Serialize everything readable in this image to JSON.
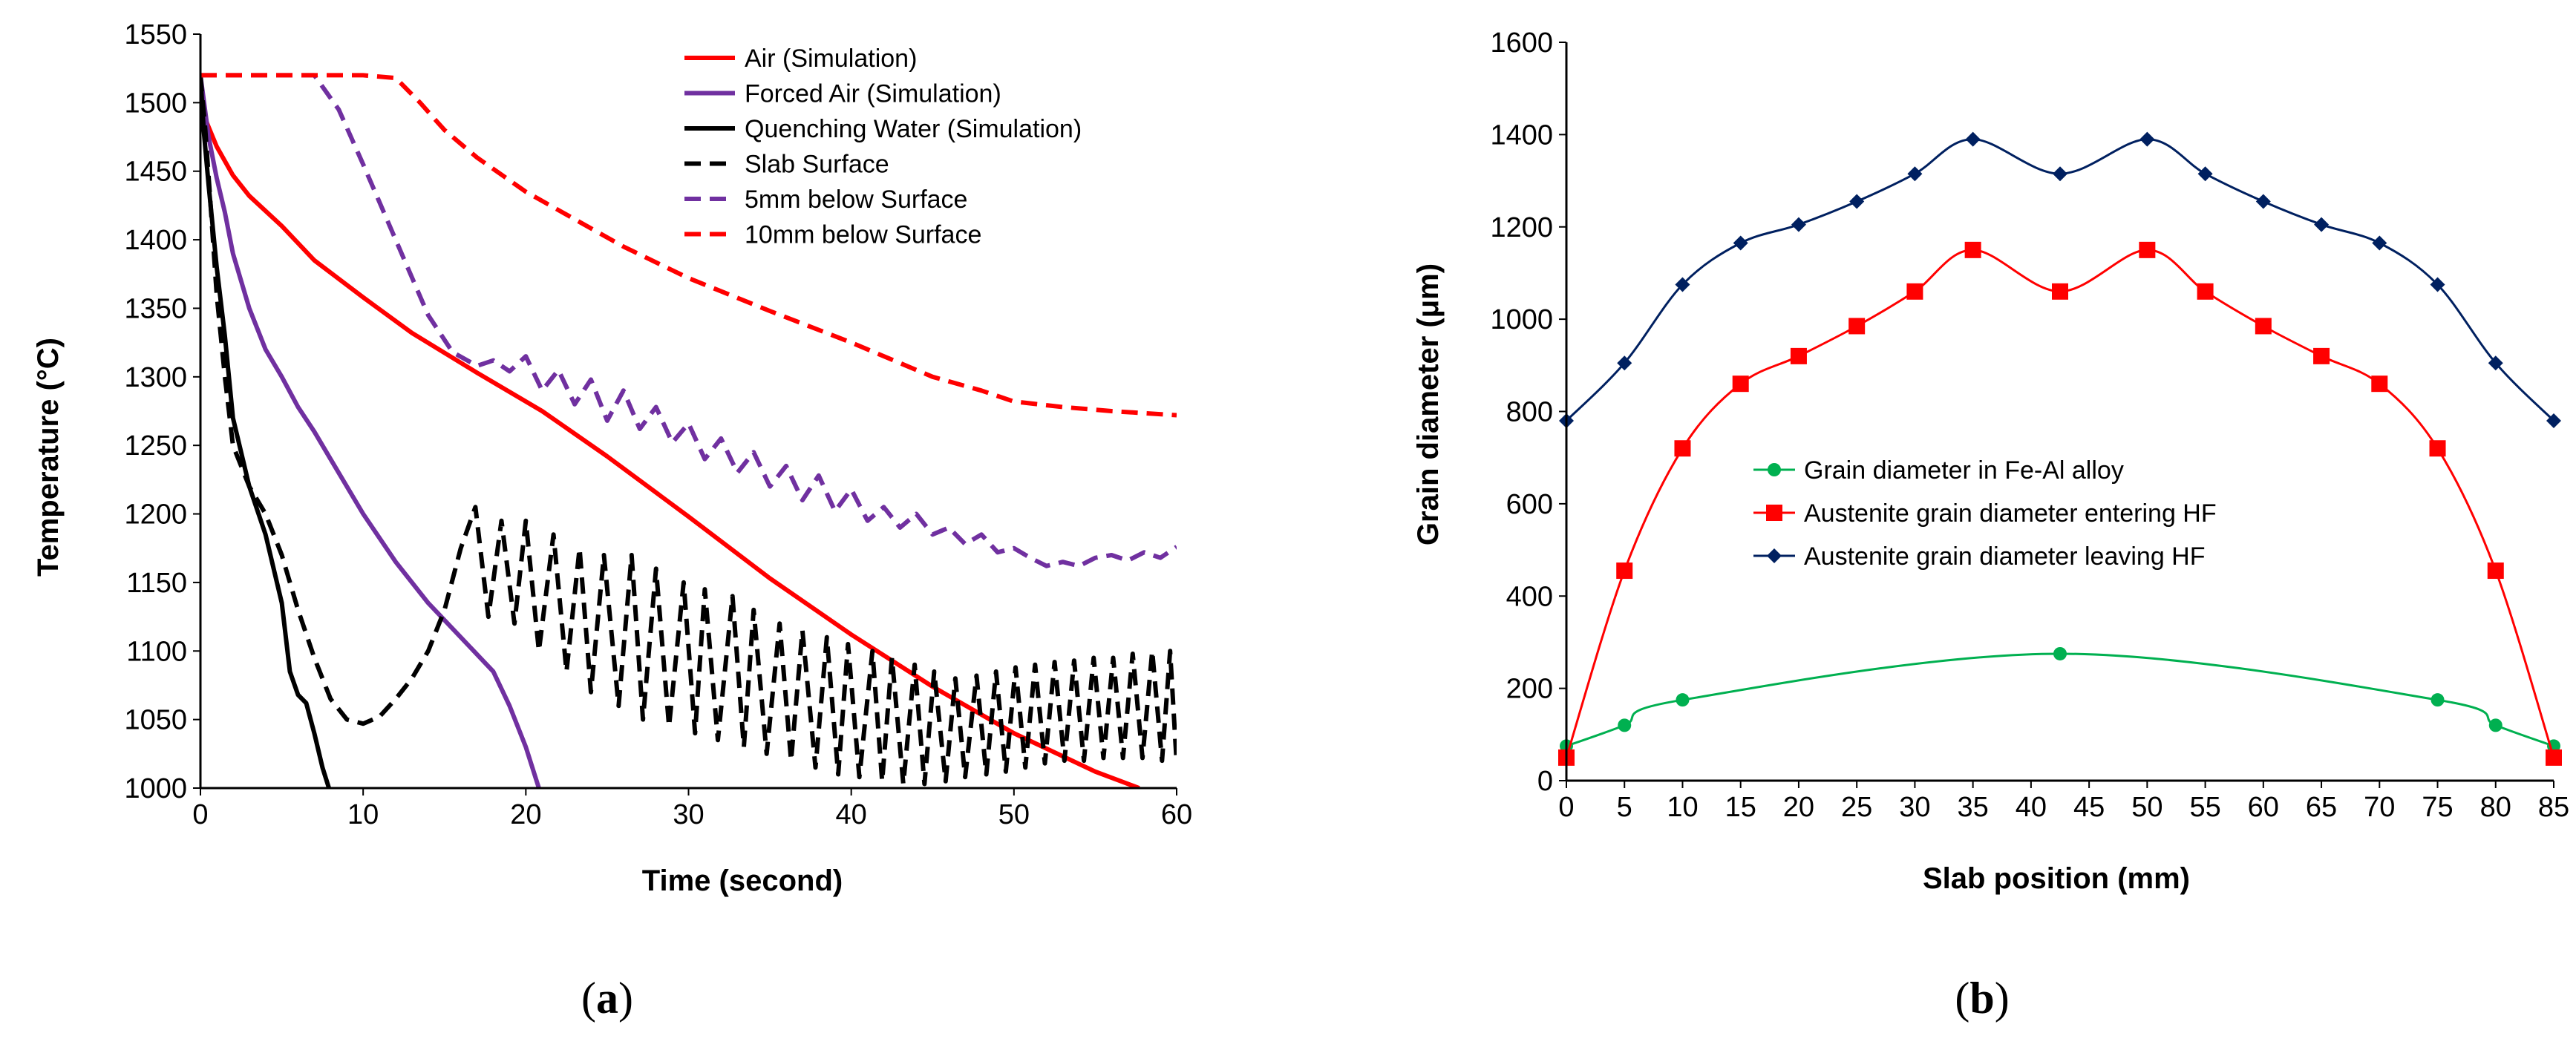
{
  "chart_data": [
    {
      "type": "line",
      "panel_label": "(a)",
      "panel_letter": "a",
      "xlabel": "Time (second)",
      "ylabel": "Temperature (°C)",
      "xlim": [
        0,
        60
      ],
      "ylim": [
        1000,
        1550
      ],
      "xticks": [
        0,
        10,
        20,
        30,
        40,
        50,
        60
      ],
      "yticks": [
        1000,
        1050,
        1100,
        1150,
        1200,
        1250,
        1300,
        1350,
        1400,
        1450,
        1500,
        1550
      ],
      "grid": false,
      "legend_position": "top-right",
      "series": [
        {
          "name": "Air (Simulation)",
          "color": "#ff0000",
          "dash": "solid",
          "x": [
            0,
            0.3,
            1,
            2,
            3,
            5,
            7,
            10,
            13,
            17,
            21,
            25,
            30,
            35,
            40,
            45,
            50,
            55,
            57.7
          ],
          "y": [
            1515,
            1488,
            1468,
            1447,
            1432,
            1410,
            1385,
            1358,
            1332,
            1303,
            1275,
            1242,
            1198,
            1153,
            1112,
            1074,
            1040,
            1012,
            1000
          ]
        },
        {
          "name": "Forced Air (Simulation)",
          "color": "#7030a0",
          "dash": "solid",
          "x": [
            0,
            0.5,
            1,
            1.5,
            2,
            3,
            4,
            5,
            6,
            7,
            8,
            10,
            12,
            14,
            16,
            18,
            19,
            20,
            20.8
          ],
          "y": [
            1520,
            1475,
            1445,
            1420,
            1390,
            1350,
            1320,
            1300,
            1278,
            1260,
            1240,
            1200,
            1165,
            1135,
            1110,
            1085,
            1060,
            1030,
            1000
          ]
        },
        {
          "name": "Quenching Water (Simulation)",
          "color": "#000000",
          "dash": "solid",
          "x": [
            0,
            0.2,
            0.5,
            1,
            1.5,
            2,
            3,
            4,
            5,
            5.5,
            6,
            6.5,
            7,
            7.5,
            7.9
          ],
          "y": [
            1520,
            1480,
            1440,
            1380,
            1330,
            1270,
            1220,
            1185,
            1135,
            1085,
            1068,
            1062,
            1040,
            1015,
            1000
          ]
        },
        {
          "name": "Slab Surface",
          "color": "#000000",
          "dash": "dashed",
          "x": [
            0,
            0.3,
            0.6,
            1,
            1.5,
            2,
            3,
            4,
            5,
            6,
            7,
            8,
            9,
            10,
            11,
            12,
            13,
            14,
            15,
            16,
            16.9,
            17.7,
            18.5,
            19.3,
            20.0,
            20.8,
            21.7,
            22.5,
            23.3,
            24.0,
            24.8,
            25.7,
            26.5,
            27.2,
            28.0,
            28.8,
            29.7,
            30.4,
            31.0,
            31.8,
            32.7,
            33.4,
            34.0,
            34.8,
            35.6,
            36.3,
            37.0,
            37.8,
            38.5,
            39.2,
            39.8,
            40.5,
            41.3,
            41.9,
            42.5,
            43.2,
            43.9,
            44.5,
            45.1,
            45.8,
            46.4,
            47.0,
            47.7,
            48.3,
            48.9,
            49.5,
            50.1,
            50.7,
            51.3,
            51.9,
            52.5,
            53.1,
            53.7,
            54.3,
            54.9,
            55.5,
            56.1,
            56.7,
            57.3,
            57.9,
            58.5,
            59.1,
            59.6,
            60
          ],
          "y": [
            1520,
            1480,
            1430,
            1360,
            1300,
            1250,
            1220,
            1200,
            1170,
            1130,
            1095,
            1065,
            1050,
            1047,
            1052,
            1065,
            1080,
            1100,
            1130,
            1175,
            1205,
            1125,
            1195,
            1120,
            1195,
            1100,
            1185,
            1085,
            1175,
            1070,
            1170,
            1060,
            1170,
            1050,
            1160,
            1045,
            1150,
            1040,
            1145,
            1035,
            1140,
            1030,
            1130,
            1025,
            1120,
            1020,
            1115,
            1015,
            1110,
            1010,
            1105,
            1008,
            1100,
            1005,
            1095,
            1003,
            1090,
            1003,
            1085,
            1005,
            1080,
            1008,
            1082,
            1010,
            1085,
            1012,
            1088,
            1015,
            1090,
            1018,
            1092,
            1020,
            1093,
            1020,
            1095,
            1022,
            1095,
            1022,
            1098,
            1022,
            1100,
            1020,
            1100,
            1018
          ]
        },
        {
          "name": "5mm below Surface",
          "color": "#7030a0",
          "dash": "dashed",
          "x": [
            0,
            4,
            7,
            8.5,
            10,
            12,
            14,
            15.5,
            17,
            18,
            19,
            20,
            21,
            22,
            23,
            24,
            25,
            26,
            27,
            28,
            29,
            30,
            31,
            32,
            33,
            34,
            35,
            36,
            37,
            38,
            39,
            40,
            41,
            42,
            43,
            44,
            45,
            46,
            47,
            48,
            49,
            50,
            51,
            52,
            53,
            54,
            55,
            56,
            57,
            58,
            59,
            60
          ],
          "y": [
            1520,
            1520,
            1520,
            1495,
            1455,
            1400,
            1345,
            1318,
            1308,
            1312,
            1304,
            1315,
            1290,
            1305,
            1280,
            1298,
            1268,
            1290,
            1262,
            1278,
            1252,
            1266,
            1240,
            1255,
            1230,
            1245,
            1220,
            1235,
            1210,
            1228,
            1202,
            1218,
            1195,
            1205,
            1190,
            1200,
            1185,
            1190,
            1178,
            1185,
            1172,
            1175,
            1168,
            1162,
            1165,
            1162,
            1168,
            1170,
            1166,
            1172,
            1168,
            1176
          ]
        },
        {
          "name": "10mm below Surface",
          "color": "#ff0000",
          "dash": "dashed",
          "x": [
            0,
            5,
            10,
            12,
            13.5,
            15,
            17,
            20,
            23,
            26,
            30,
            35,
            40,
            45,
            48,
            50,
            53,
            56,
            60
          ],
          "y": [
            1520,
            1520,
            1520,
            1518,
            1500,
            1480,
            1460,
            1435,
            1415,
            1395,
            1372,
            1348,
            1325,
            1300,
            1290,
            1282,
            1278,
            1275,
            1272
          ]
        }
      ]
    },
    {
      "type": "line",
      "panel_label": "(b)",
      "panel_letter": "b",
      "xlabel": "Slab position (mm)",
      "ylabel": "Grain diameter (μm)",
      "xlim": [
        0,
        85
      ],
      "ylim": [
        0,
        1600
      ],
      "xticks": [
        0,
        5,
        10,
        15,
        20,
        25,
        30,
        35,
        40,
        45,
        50,
        55,
        60,
        65,
        70,
        75,
        80,
        85
      ],
      "yticks": [
        0,
        200,
        400,
        600,
        800,
        1000,
        1200,
        1400,
        1600
      ],
      "grid": false,
      "legend_position": "center-left",
      "series": [
        {
          "name": "Grain diameter in Fe-Al alloy",
          "color": "#00b050",
          "marker": "circle",
          "x": [
            0,
            5,
            10,
            42.5,
            75,
            80,
            85
          ],
          "y": [
            75,
            120,
            175,
            275,
            175,
            120,
            75
          ]
        },
        {
          "name": "Austenite grain diameter entering HF",
          "color": "#ff0000",
          "marker": "square",
          "x": [
            0,
            5,
            10,
            15,
            20,
            25,
            30,
            35,
            42.5,
            50,
            55,
            60,
            65,
            70,
            75,
            80,
            85
          ],
          "y": [
            50,
            455,
            720,
            860,
            920,
            985,
            1060,
            1150,
            1060,
            1150,
            1060,
            985,
            920,
            860,
            720,
            455,
            50
          ]
        },
        {
          "name": "Austenite grain diameter leaving HF",
          "color": "#002060",
          "marker": "diamond",
          "x": [
            0,
            5,
            10,
            15,
            20,
            25,
            30,
            35,
            42.5,
            50,
            55,
            60,
            65,
            70,
            75,
            80,
            85
          ],
          "y": [
            780,
            905,
            1075,
            1165,
            1205,
            1255,
            1315,
            1390,
            1315,
            1390,
            1315,
            1255,
            1205,
            1165,
            1075,
            905,
            780
          ]
        }
      ]
    }
  ]
}
